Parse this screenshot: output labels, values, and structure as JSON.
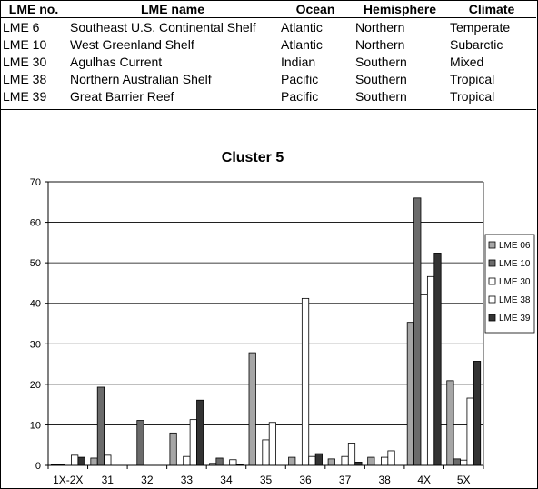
{
  "table": {
    "headers": [
      "LME no.",
      "LME name",
      "Ocean",
      "Hemisphere",
      "Climate"
    ],
    "rows": [
      [
        "LME 6",
        "Southeast U.S. Continental Shelf",
        "Atlantic",
        "Northern",
        "Temperate"
      ],
      [
        "LME 10",
        "West Greenland Shelf",
        "Atlantic",
        "Northern",
        "Subarctic"
      ],
      [
        "LME 30",
        "Agulhas Current",
        "Indian",
        "Southern",
        "Mixed"
      ],
      [
        "LME 38",
        "Northern Australian Shelf",
        "Pacific",
        "Southern",
        "Tropical"
      ],
      [
        "LME 39",
        "Great Barrier Reef",
        "Pacific",
        "Southern",
        "Tropical"
      ]
    ]
  },
  "chart_data": {
    "type": "bar",
    "title": "Cluster 5",
    "categories": [
      "1X-2X",
      "31",
      "32",
      "33",
      "34",
      "35",
      "36",
      "37",
      "38",
      "4X",
      "5X"
    ],
    "ylim": [
      0,
      70
    ],
    "yticks": [
      0,
      10,
      20,
      30,
      40,
      50,
      60,
      70
    ],
    "grid": true,
    "legend_position": "right",
    "series": [
      {
        "name": "LME 06",
        "color": "#a6a6a6",
        "values": [
          0.2,
          1.8,
          0,
          8.0,
          0.5,
          27.8,
          2.0,
          1.6,
          2.0,
          35.3,
          20.9
        ]
      },
      {
        "name": "LME 10",
        "color": "#6b6b6b",
        "values": [
          0.2,
          19.3,
          11.1,
          0,
          1.8,
          0,
          0,
          0,
          0,
          66.0,
          1.6
        ]
      },
      {
        "name": "LME 30",
        "color": "#ffffff",
        "values": [
          0,
          2.5,
          0,
          2.2,
          0,
          6.3,
          41.2,
          2.2,
          2.0,
          42.1,
          1.3
        ]
      },
      {
        "name": "LME 38",
        "color": "#ffffff",
        "values": [
          2.5,
          0,
          0,
          11.3,
          1.4,
          10.6,
          2.2,
          5.5,
          3.6,
          46.6,
          16.6
        ]
      },
      {
        "name": "LME 39",
        "color": "#333333",
        "values": [
          2.0,
          0,
          0,
          16.1,
          0.2,
          0,
          2.9,
          0.8,
          0,
          52.4,
          25.7
        ]
      }
    ]
  }
}
